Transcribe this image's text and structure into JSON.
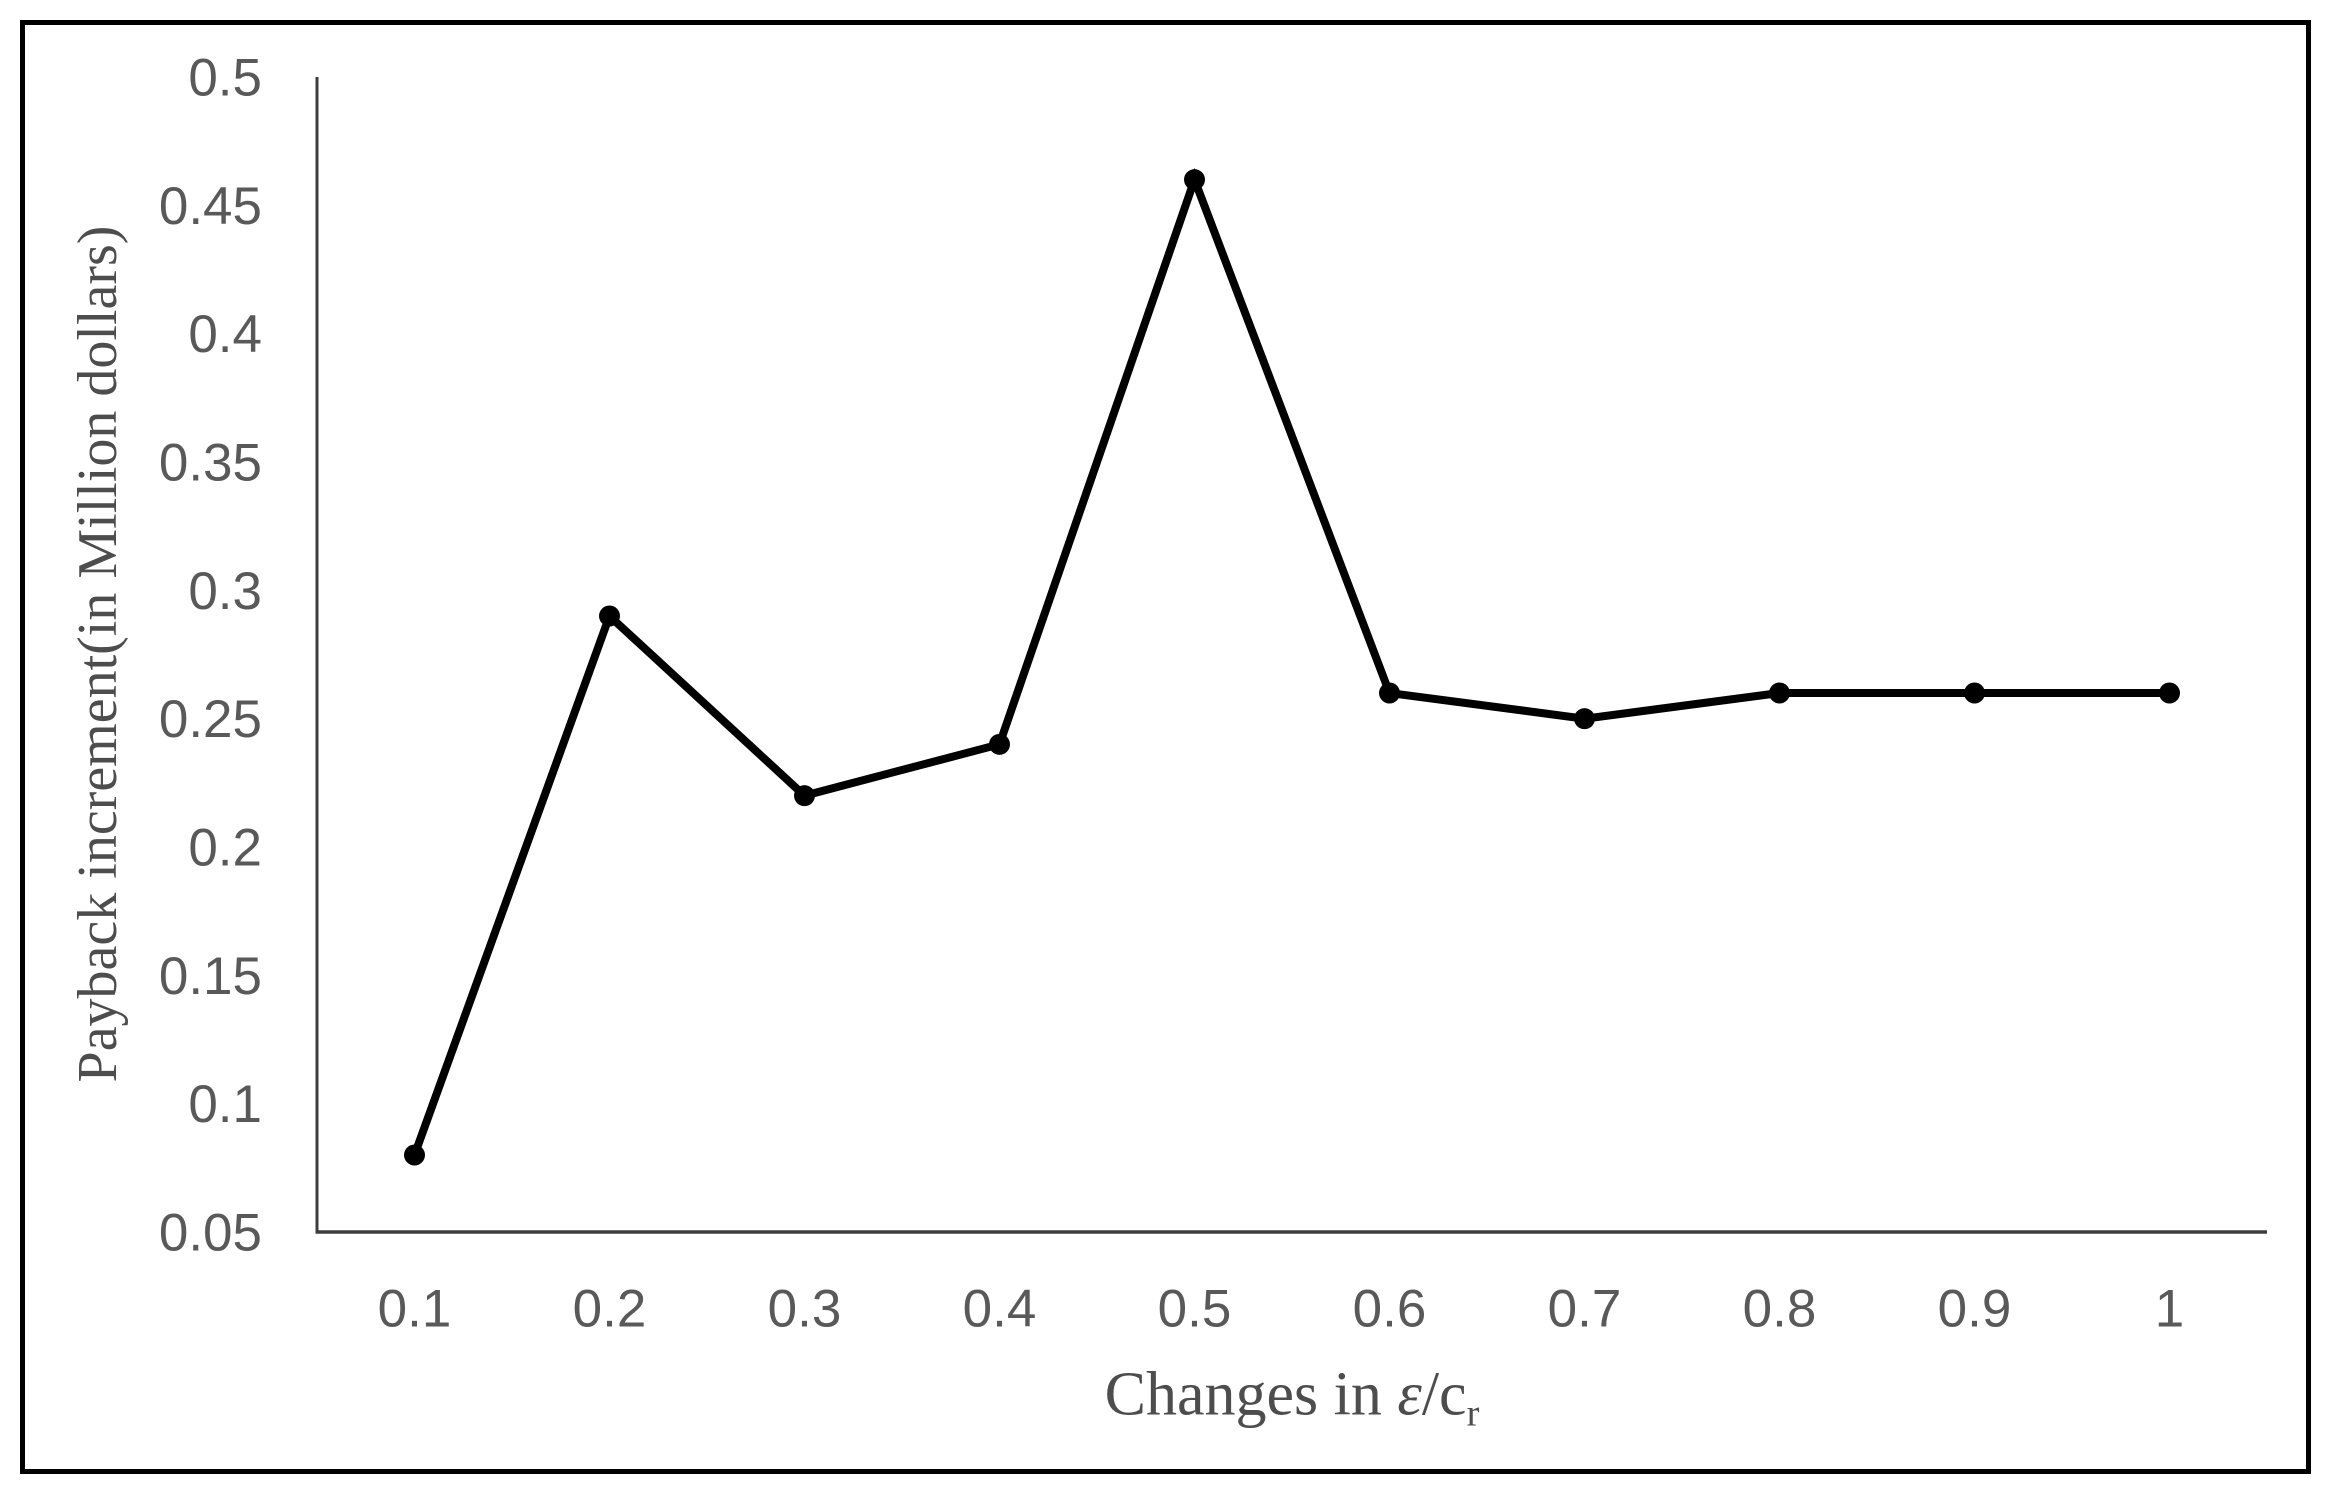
{
  "figure": {
    "background": "#ffffff",
    "border_color": "#000000"
  },
  "chart_data": {
    "type": "line",
    "title": "",
    "ylabel": "Payback increment(in Million dollars)",
    "xlabel_parts": {
      "prefix": "Changes in ",
      "symbol": "ε",
      "separator": "/c",
      "subscript": "r"
    },
    "xlabel_full": "Changes in ε/c_r",
    "categories": [
      0.1,
      0.2,
      0.3,
      0.4,
      0.5,
      0.6,
      0.7,
      0.8,
      0.9,
      1
    ],
    "x_tick_labels": [
      "0.1",
      "0.2",
      "0.3",
      "0.4",
      "0.5",
      "0.6",
      "0.7",
      "0.8",
      "0.9",
      "1"
    ],
    "series": [
      {
        "name": "Payback increment",
        "values": [
          0.08,
          0.29,
          0.22,
          0.24,
          0.46,
          0.26,
          0.25,
          0.26,
          0.26,
          0.26
        ]
      }
    ],
    "ylim": [
      0.05,
      0.5
    ],
    "y_tick_values": [
      0.05,
      0.1,
      0.15,
      0.2,
      0.25,
      0.3,
      0.35,
      0.4,
      0.45,
      0.5
    ],
    "y_tick_labels": [
      "0.05",
      "0.1",
      "0.15",
      "0.2",
      "0.25",
      "0.3",
      "0.35",
      "0.4",
      "0.45",
      "0.5"
    ],
    "grid": false,
    "legend": "none",
    "marker": "circle",
    "line_color": "#000000",
    "marker_color": "#000000",
    "axis_color": "#3d3d3d",
    "tick_label_color": "#595959"
  }
}
